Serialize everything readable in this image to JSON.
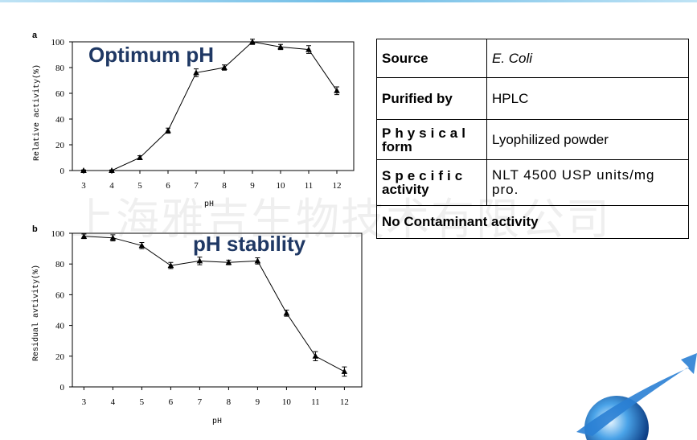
{
  "slide": {
    "watermark": "上海雅吉生物技术有限公司",
    "colors": {
      "title": "#1f3864",
      "deco_blue": "#2a7fd4"
    }
  },
  "chart_data": [
    {
      "type": "line",
      "panel": "a",
      "title": "Optimum pH",
      "xlabel": "pH",
      "ylabel": "Relative activity(%)",
      "x": [
        3,
        4,
        5,
        6,
        7,
        8,
        9,
        10,
        11,
        12
      ],
      "series": [
        {
          "values": [
            0,
            0,
            10,
            31,
            76,
            80,
            100,
            96,
            94,
            62
          ],
          "error": [
            0.5,
            0.5,
            1.5,
            2,
            3,
            2,
            2,
            2,
            3,
            3
          ]
        }
      ],
      "xlim": [
        2.6,
        12.6
      ],
      "ylim": [
        0,
        100
      ],
      "yticks": [
        0,
        20,
        40,
        60,
        80,
        100
      ],
      "marker": "triangle",
      "grid": false
    },
    {
      "type": "line",
      "panel": "b",
      "title": "pH stability",
      "xlabel": "pH",
      "ylabel": "Residual avtivity(%)",
      "x": [
        3,
        4,
        5,
        6,
        7,
        8,
        9,
        10,
        11,
        12
      ],
      "series": [
        {
          "values": [
            98,
            97,
            92,
            79,
            82,
            81,
            82,
            48,
            20,
            10
          ],
          "error": [
            1.5,
            2,
            2,
            2,
            2.5,
            1.5,
            2,
            2,
            3,
            3
          ]
        }
      ],
      "xlim": [
        2.6,
        12.6
      ],
      "ylim": [
        0,
        100
      ],
      "yticks": [
        0,
        20,
        40,
        60,
        80,
        100
      ],
      "marker": "triangle",
      "grid": false
    }
  ],
  "table": {
    "rows": [
      {
        "key": "Source",
        "value": "E. Coli"
      },
      {
        "key": "Purified by",
        "value": "HPLC"
      },
      {
        "key_line1": "Physical",
        "key_line2": "form",
        "value": "Lyophilized powder"
      },
      {
        "key_line1": "Specific",
        "key_line2": "activity",
        "value": "NLT 4500 USP units/mg pro."
      },
      {
        "full": "No Contaminant activity"
      }
    ]
  }
}
